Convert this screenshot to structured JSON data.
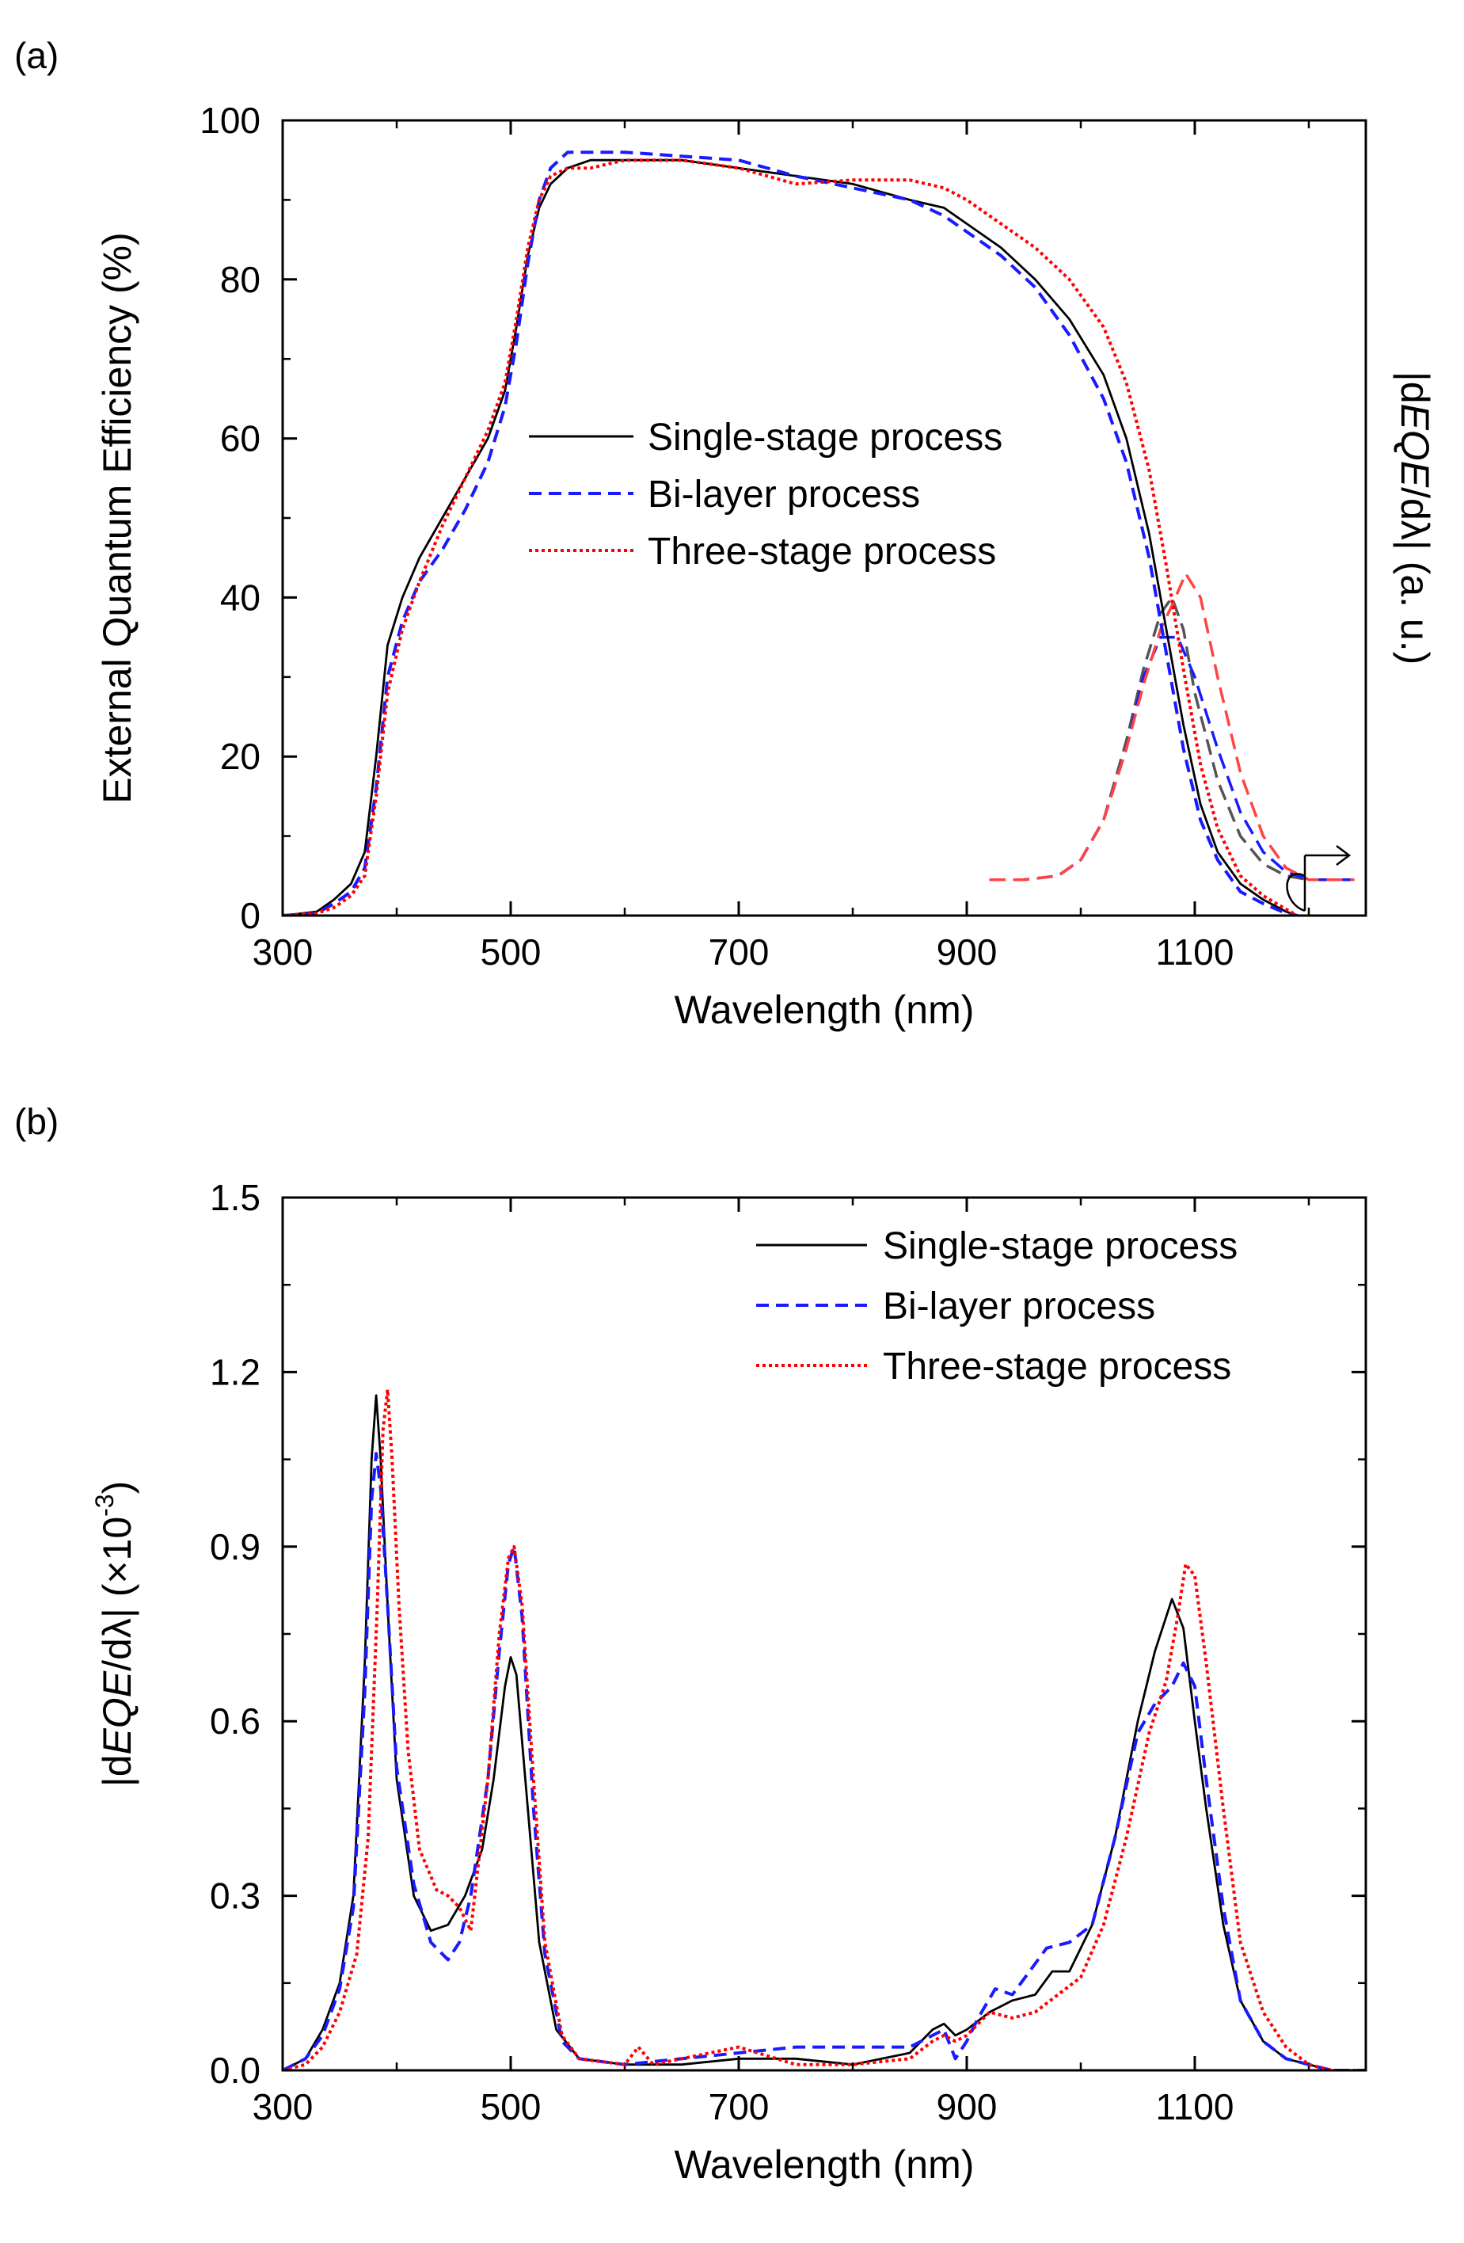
{
  "chart_data": [
    {
      "type": "line",
      "panel_label": "(a)",
      "xlabel": "Wavelength (nm)",
      "ylabel": "External Quantum Efficiency (%)",
      "ylabel_right_parts": [
        "|d",
        "EQE",
        "/dλ| (a. u.)"
      ],
      "xlim": [
        300,
        1250
      ],
      "ylim": [
        0,
        100
      ],
      "xticks": [
        300,
        500,
        700,
        900,
        1100
      ],
      "xtick_labels": [
        "300",
        "500",
        "700",
        "900",
        "1100"
      ],
      "yticks": [
        0,
        20,
        40,
        60,
        80,
        100
      ],
      "ytick_labels": [
        "0",
        "20",
        "40",
        "60",
        "80",
        "100"
      ],
      "legend_position": "center",
      "series": [
        {
          "name": "Single-stage process",
          "color": "#000000",
          "dash": "solid",
          "x": [
            300,
            330,
            345,
            360,
            372,
            382,
            392,
            405,
            420,
            440,
            460,
            480,
            495,
            505,
            515,
            525,
            535,
            550,
            570,
            600,
            650,
            700,
            750,
            800,
            850,
            880,
            900,
            930,
            960,
            990,
            1020,
            1040,
            1060,
            1075,
            1090,
            1105,
            1120,
            1140,
            1160,
            1180,
            1190
          ],
          "y": [
            0,
            0.5,
            2,
            4,
            8,
            20,
            34,
            40,
            45,
            50,
            55,
            60,
            66,
            74,
            83,
            89,
            92,
            94,
            95,
            95,
            95,
            94,
            93,
            92,
            90,
            89,
            87,
            84,
            80,
            75,
            68,
            60,
            48,
            36,
            24,
            14,
            8,
            4,
            2,
            0.5,
            0
          ]
        },
        {
          "name": "Bi-layer process",
          "color": "#1a1aff",
          "dash": "dashed",
          "x": [
            300,
            330,
            345,
            360,
            372,
            382,
            392,
            405,
            420,
            440,
            460,
            480,
            495,
            505,
            515,
            525,
            535,
            550,
            570,
            600,
            650,
            700,
            750,
            800,
            850,
            880,
            900,
            930,
            960,
            990,
            1020,
            1040,
            1060,
            1075,
            1090,
            1105,
            1120,
            1140,
            1160,
            1180,
            1190
          ],
          "y": [
            0,
            0.3,
            1.5,
            3,
            6,
            16,
            30,
            37,
            42,
            46,
            51,
            57,
            64,
            72,
            82,
            90,
            94,
            96,
            96,
            96,
            95.5,
            95,
            93,
            91.5,
            90,
            88,
            86,
            83,
            79,
            73,
            65,
            57,
            45,
            33,
            21,
            12,
            7,
            3,
            1.5,
            0.3,
            0
          ]
        },
        {
          "name": "Three-stage process",
          "color": "#ff0000",
          "dash": "dotted",
          "x": [
            300,
            330,
            345,
            360,
            372,
            382,
            392,
            405,
            420,
            440,
            460,
            480,
            495,
            505,
            515,
            525,
            535,
            550,
            570,
            600,
            650,
            700,
            750,
            800,
            850,
            880,
            900,
            930,
            960,
            990,
            1020,
            1040,
            1060,
            1075,
            1090,
            1105,
            1120,
            1140,
            1160,
            1180,
            1190
          ],
          "y": [
            0,
            0.3,
            1,
            2.5,
            5,
            15,
            28,
            36,
            42,
            49,
            55,
            61,
            67,
            75,
            84,
            90,
            93,
            94,
            94,
            95,
            95,
            94,
            92,
            92.5,
            92.5,
            91.5,
            90,
            87,
            84,
            80,
            74,
            67,
            56,
            44,
            31,
            19,
            11,
            5,
            2.5,
            0.8,
            0
          ]
        }
      ],
      "derivative_curves": [
        {
          "color": "#555555",
          "x": [
            920,
            950,
            980,
            1000,
            1020,
            1040,
            1055,
            1070,
            1080,
            1090,
            1100,
            1120,
            1140,
            1160,
            1180,
            1200,
            1220,
            1240
          ],
          "y": [
            4.5,
            4.5,
            5,
            7,
            12,
            22,
            31,
            38,
            40,
            36,
            28,
            17,
            10,
            6.5,
            5,
            4.5,
            4.5,
            4.5
          ]
        },
        {
          "color": "#1a1aff",
          "x": [
            920,
            950,
            980,
            1000,
            1020,
            1040,
            1055,
            1070,
            1085,
            1100,
            1120,
            1140,
            1160,
            1180,
            1200,
            1220,
            1240
          ],
          "y": [
            4.5,
            4.5,
            5,
            7,
            12,
            21,
            30,
            35,
            35,
            30,
            21,
            13,
            8,
            5.5,
            4.5,
            4.5,
            4.5
          ]
        },
        {
          "color": "#ff4444",
          "x": [
            920,
            950,
            980,
            1000,
            1020,
            1040,
            1055,
            1070,
            1080,
            1092,
            1105,
            1120,
            1140,
            1160,
            1180,
            1200,
            1220,
            1240
          ],
          "y": [
            4.5,
            4.5,
            5,
            7,
            12,
            21,
            29,
            36,
            39,
            43,
            40,
            30,
            18,
            10,
            6,
            4.5,
            4.5,
            4.5
          ]
        }
      ]
    },
    {
      "type": "line",
      "panel_label": "(b)",
      "xlabel": "Wavelength (nm)",
      "ylabel_parts": [
        "|d",
        "EQE",
        "/dλ| (×10",
        "-3",
        ")"
      ],
      "xlim": [
        300,
        1250
      ],
      "ylim": [
        0,
        1.5
      ],
      "xticks": [
        300,
        500,
        700,
        900,
        1100
      ],
      "xtick_labels": [
        "300",
        "500",
        "700",
        "900",
        "1100"
      ],
      "yticks": [
        0,
        0.3,
        0.6,
        0.9,
        1.2,
        1.5
      ],
      "ytick_labels": [
        "0.0",
        "0.3",
        "0.6",
        "0.9",
        "1.2",
        "1.5"
      ],
      "legend_position": "top-right",
      "series": [
        {
          "name": "Single-stage process",
          "color": "#000000",
          "dash": "solid",
          "x": [
            300,
            320,
            335,
            350,
            362,
            372,
            378,
            382,
            386,
            392,
            400,
            415,
            430,
            445,
            460,
            475,
            485,
            495,
            500,
            505,
            515,
            525,
            540,
            560,
            600,
            650,
            700,
            750,
            800,
            850,
            870,
            880,
            890,
            900,
            920,
            940,
            960,
            975,
            990,
            1010,
            1030,
            1050,
            1065,
            1080,
            1090,
            1100,
            1110,
            1125,
            1140,
            1160,
            1180,
            1200,
            1220,
            1250
          ],
          "y": [
            0,
            0.02,
            0.07,
            0.15,
            0.3,
            0.7,
            1.05,
            1.16,
            1.05,
            0.8,
            0.5,
            0.3,
            0.24,
            0.25,
            0.3,
            0.38,
            0.5,
            0.66,
            0.71,
            0.68,
            0.45,
            0.22,
            0.07,
            0.02,
            0.01,
            0.01,
            0.02,
            0.02,
            0.01,
            0.03,
            0.07,
            0.08,
            0.06,
            0.07,
            0.1,
            0.12,
            0.13,
            0.17,
            0.17,
            0.25,
            0.4,
            0.6,
            0.72,
            0.81,
            0.76,
            0.6,
            0.45,
            0.25,
            0.12,
            0.05,
            0.02,
            0.01,
            0,
            0
          ]
        },
        {
          "name": "Bi-layer process",
          "color": "#1a1aff",
          "dash": "dashed",
          "x": [
            300,
            320,
            335,
            350,
            362,
            372,
            378,
            382,
            386,
            392,
            400,
            415,
            430,
            445,
            455,
            465,
            480,
            490,
            498,
            503,
            510,
            520,
            530,
            545,
            560,
            600,
            650,
            700,
            750,
            800,
            850,
            870,
            880,
            890,
            900,
            910,
            925,
            940,
            955,
            970,
            990,
            1010,
            1030,
            1050,
            1065,
            1080,
            1090,
            1100,
            1110,
            1125,
            1140,
            1160,
            1180,
            1200,
            1220,
            1250
          ],
          "y": [
            0,
            0.02,
            0.06,
            0.14,
            0.28,
            0.65,
            0.98,
            1.06,
            1.0,
            0.8,
            0.52,
            0.32,
            0.22,
            0.19,
            0.22,
            0.3,
            0.5,
            0.72,
            0.87,
            0.9,
            0.78,
            0.45,
            0.2,
            0.05,
            0.02,
            0.01,
            0.02,
            0.03,
            0.04,
            0.04,
            0.04,
            0.06,
            0.07,
            0.02,
            0.05,
            0.09,
            0.14,
            0.13,
            0.17,
            0.21,
            0.22,
            0.25,
            0.4,
            0.58,
            0.63,
            0.66,
            0.7,
            0.66,
            0.5,
            0.28,
            0.12,
            0.05,
            0.02,
            0.01,
            0,
            0
          ]
        },
        {
          "name": "Three-stage process",
          "color": "#ff0000",
          "dash": "dotted",
          "x": [
            300,
            320,
            335,
            350,
            365,
            375,
            383,
            388,
            392,
            396,
            402,
            410,
            420,
            435,
            445,
            455,
            465,
            480,
            490,
            498,
            503,
            510,
            520,
            530,
            545,
            560,
            600,
            612,
            625,
            650,
            700,
            750,
            800,
            850,
            870,
            880,
            890,
            900,
            920,
            940,
            960,
            980,
            1000,
            1020,
            1040,
            1060,
            1075,
            1085,
            1092,
            1100,
            1110,
            1125,
            1140,
            1160,
            1180,
            1200,
            1220,
            1250
          ],
          "y": [
            0,
            0.01,
            0.04,
            0.1,
            0.2,
            0.4,
            0.8,
            1.1,
            1.17,
            1.05,
            0.8,
            0.55,
            0.38,
            0.31,
            0.3,
            0.28,
            0.24,
            0.5,
            0.75,
            0.88,
            0.9,
            0.8,
            0.5,
            0.22,
            0.06,
            0.02,
            0.01,
            0.04,
            0.01,
            0.02,
            0.04,
            0.01,
            0.01,
            0.02,
            0.05,
            0.06,
            0.05,
            0.06,
            0.1,
            0.09,
            0.1,
            0.13,
            0.16,
            0.25,
            0.4,
            0.58,
            0.67,
            0.78,
            0.87,
            0.85,
            0.7,
            0.45,
            0.22,
            0.1,
            0.04,
            0.01,
            0,
            0
          ]
        }
      ]
    }
  ]
}
